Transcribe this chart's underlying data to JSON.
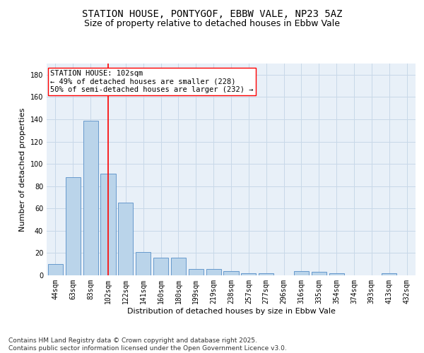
{
  "title_line1": "STATION HOUSE, PONTYGOF, EBBW VALE, NP23 5AZ",
  "title_line2": "Size of property relative to detached houses in Ebbw Vale",
  "xlabel": "Distribution of detached houses by size in Ebbw Vale",
  "ylabel": "Number of detached properties",
  "categories": [
    "44sqm",
    "63sqm",
    "83sqm",
    "102sqm",
    "122sqm",
    "141sqm",
    "160sqm",
    "180sqm",
    "199sqm",
    "219sqm",
    "238sqm",
    "257sqm",
    "277sqm",
    "296sqm",
    "316sqm",
    "335sqm",
    "354sqm",
    "374sqm",
    "393sqm",
    "413sqm",
    "432sqm"
  ],
  "values": [
    10,
    88,
    139,
    91,
    65,
    21,
    16,
    16,
    6,
    6,
    4,
    2,
    2,
    0,
    4,
    3,
    2,
    0,
    0,
    2,
    0
  ],
  "bar_color": "#bad4ea",
  "bar_edge_color": "#6699cc",
  "vline_x": 3,
  "vline_color": "red",
  "annotation_text": "STATION HOUSE: 102sqm\n← 49% of detached houses are smaller (228)\n50% of semi-detached houses are larger (232) →",
  "annotation_box_color": "white",
  "annotation_box_edge_color": "red",
  "grid_color": "#c8d8e8",
  "background_color": "#e8f0f8",
  "ylim": [
    0,
    190
  ],
  "yticks": [
    0,
    20,
    40,
    60,
    80,
    100,
    120,
    140,
    160,
    180
  ],
  "footer_text": "Contains HM Land Registry data © Crown copyright and database right 2025.\nContains public sector information licensed under the Open Government Licence v3.0.",
  "title_fontsize": 10,
  "subtitle_fontsize": 9,
  "axis_label_fontsize": 8,
  "tick_fontsize": 7,
  "annotation_fontsize": 7.5,
  "footer_fontsize": 6.5
}
